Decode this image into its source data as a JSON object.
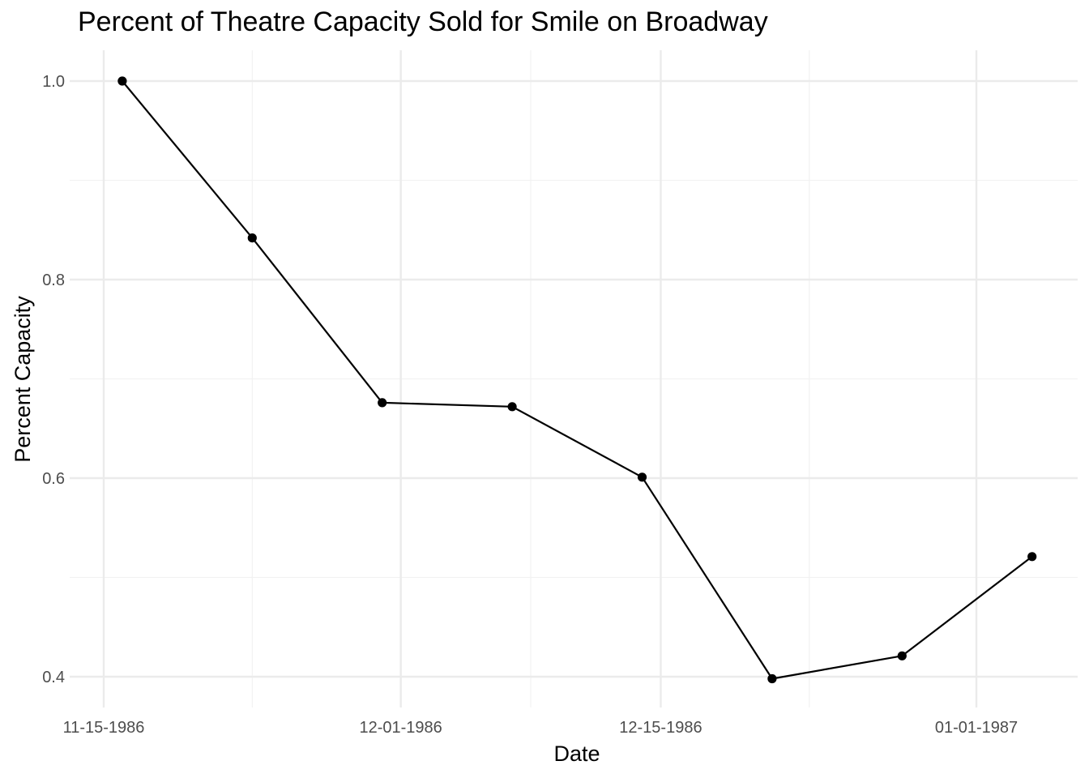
{
  "chart_data": {
    "type": "line",
    "title": "Percent of Theatre Capacity Sold for Smile on Broadway",
    "xlabel": "Date",
    "ylabel": "Percent Capacity",
    "x_axis_type": "date",
    "x_tick_labels": [
      "11-15-1986",
      "12-01-1986",
      "12-15-1986",
      "01-01-1987"
    ],
    "x_tick_dates": [
      "1986-11-15",
      "1986-12-01",
      "1986-12-15",
      "1987-01-01"
    ],
    "x_minor_dates": [
      "1986-11-23",
      "1986-12-08",
      "1986-12-23"
    ],
    "y_ticks": [
      0.4,
      0.6,
      0.8,
      1.0
    ],
    "y_tick_labels": [
      "0.4",
      "0.6",
      "0.8",
      "1.0"
    ],
    "y_minor_ticks": [
      0.5,
      0.7,
      0.9
    ],
    "ylim": [
      0.373,
      1.03
    ],
    "xlim": [
      "1986-11-15",
      "1987-01-05"
    ],
    "grid": true,
    "series": [
      {
        "color": "#000000",
        "points": [
          {
            "x": "1986-11-16",
            "y": 1.0
          },
          {
            "x": "1986-11-23",
            "y": 0.842
          },
          {
            "x": "1986-11-30",
            "y": 0.676
          },
          {
            "x": "1986-12-07",
            "y": 0.672
          },
          {
            "x": "1986-12-14",
            "y": 0.601
          },
          {
            "x": "1986-12-21",
            "y": 0.398
          },
          {
            "x": "1986-12-28",
            "y": 0.421
          },
          {
            "x": "1987-01-04",
            "y": 0.521
          }
        ]
      }
    ]
  }
}
